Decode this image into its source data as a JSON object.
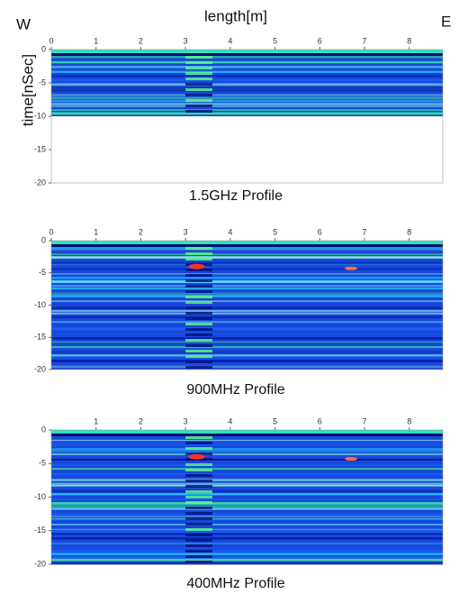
{
  "chart_data": [
    {
      "type": "radargram",
      "title": "1.5GHz Profile",
      "xlabel": "length[m]",
      "ylabel": "time[nSec]",
      "annotations": [
        "W",
        "E"
      ],
      "xlim": [
        0,
        8.75
      ],
      "xticks": [
        0,
        1,
        2,
        3,
        4,
        5,
        6,
        7,
        8
      ],
      "ylim": [
        0,
        -20
      ],
      "yticks": [
        0,
        -5,
        -10,
        -15,
        -20
      ],
      "data_ylim": [
        0,
        -10
      ]
    },
    {
      "type": "radargram",
      "title": "900MHz Profile",
      "xlim": [
        0,
        8.75
      ],
      "xticks": [
        0,
        1,
        2,
        3,
        4,
        5,
        6,
        7,
        8
      ],
      "ylim": [
        0,
        -20
      ],
      "yticks": [
        0,
        -5,
        -10,
        -15,
        -20
      ],
      "data_ylim": [
        0,
        -20
      ]
    },
    {
      "type": "radargram",
      "title": "400MHz Profile",
      "xlim": [
        0,
        8.75
      ],
      "xticks": [
        1,
        2,
        3,
        4,
        5,
        6,
        7,
        8
      ],
      "ylim": [
        0,
        -20
      ],
      "yticks": [
        0,
        -5,
        -10,
        -15,
        -20
      ],
      "data_ylim": [
        0,
        -20
      ]
    }
  ]
}
